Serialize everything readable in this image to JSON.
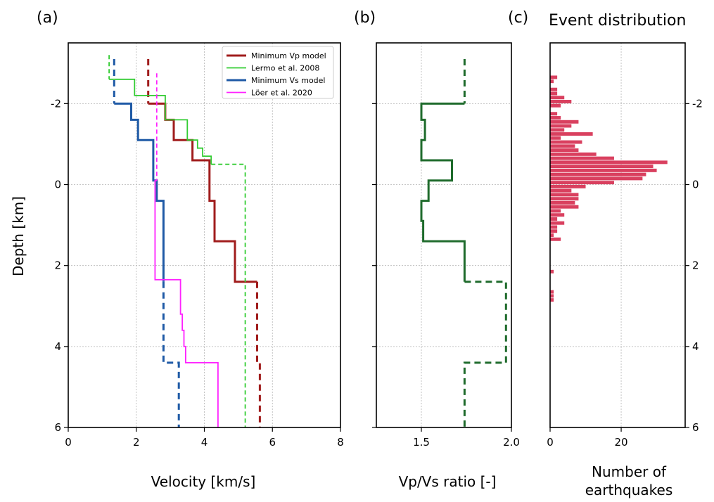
{
  "chart_data": [
    {
      "panel": "(a)",
      "type": "line",
      "xlabel": "Velocity [km/s]",
      "ylabel": "Depth [km]",
      "xlim": [
        0,
        8
      ],
      "ylim": [
        6,
        -3.5
      ],
      "xticks": [
        0,
        2,
        4,
        6,
        8
      ],
      "yticks": [
        -2,
        0,
        2,
        4,
        6
      ],
      "grid": true,
      "legend_placement": "top-right",
      "series": [
        {
          "name": "Minimum Vp model",
          "color": "#a01c1c",
          "segments": [
            {
              "style": "dashed",
              "points": [
                [
                  2.35,
                  -3.1
                ],
                [
                  2.35,
                  -2.0
                ]
              ]
            },
            {
              "style": "solid",
              "points": [
                [
                  2.35,
                  -2.0
                ],
                [
                  2.85,
                  -2.0
                ],
                [
                  2.85,
                  -1.6
                ],
                [
                  3.1,
                  -1.6
                ],
                [
                  3.1,
                  -1.1
                ],
                [
                  3.65,
                  -1.1
                ],
                [
                  3.65,
                  -0.6
                ],
                [
                  4.15,
                  -0.6
                ],
                [
                  4.15,
                  0.4
                ],
                [
                  4.3,
                  0.4
                ],
                [
                  4.3,
                  1.4
                ],
                [
                  4.9,
                  1.4
                ],
                [
                  4.9,
                  2.4
                ],
                [
                  5.55,
                  2.4
                ]
              ]
            },
            {
              "style": "dashed",
              "points": [
                [
                  5.55,
                  2.4
                ],
                [
                  5.55,
                  4.4
                ],
                [
                  5.63,
                  4.4
                ],
                [
                  5.63,
                  6.0
                ]
              ]
            }
          ]
        },
        {
          "name": "Lermo et al. 2008",
          "color": "#33cc33",
          "segments": [
            {
              "style": "dashed",
              "points": [
                [
                  1.2,
                  -3.2
                ],
                [
                  1.2,
                  -2.6
                ]
              ]
            },
            {
              "style": "solid",
              "points": [
                [
                  1.2,
                  -2.6
                ],
                [
                  1.95,
                  -2.6
                ],
                [
                  1.95,
                  -2.2
                ],
                [
                  2.85,
                  -2.2
                ],
                [
                  2.85,
                  -1.6
                ],
                [
                  3.5,
                  -1.6
                ],
                [
                  3.5,
                  -1.1
                ],
                [
                  3.8,
                  -1.1
                ],
                [
                  3.8,
                  -0.9
                ],
                [
                  3.95,
                  -0.9
                ],
                [
                  3.95,
                  -0.7
                ],
                [
                  4.2,
                  -0.7
                ],
                [
                  4.2,
                  -0.5
                ]
              ]
            },
            {
              "style": "dashed",
              "points": [
                [
                  4.2,
                  -0.5
                ],
                [
                  5.2,
                  -0.5
                ],
                [
                  5.2,
                  6.0
                ]
              ]
            }
          ]
        },
        {
          "name": "Minimum Vs model",
          "color": "#1f5aa6",
          "segments": [
            {
              "style": "dashed",
              "points": [
                [
                  1.35,
                  -3.1
                ],
                [
                  1.35,
                  -2.0
                ]
              ]
            },
            {
              "style": "solid",
              "points": [
                [
                  1.35,
                  -2.0
                ],
                [
                  1.85,
                  -2.0
                ],
                [
                  1.85,
                  -1.6
                ],
                [
                  2.05,
                  -1.6
                ],
                [
                  2.05,
                  -1.1
                ],
                [
                  2.5,
                  -1.1
                ],
                [
                  2.5,
                  -0.1
                ],
                [
                  2.6,
                  -0.1
                ],
                [
                  2.6,
                  0.4
                ],
                [
                  2.8,
                  0.4
                ],
                [
                  2.8,
                  2.4
                ]
              ]
            },
            {
              "style": "dashed",
              "points": [
                [
                  2.8,
                  2.4
                ],
                [
                  2.8,
                  4.4
                ],
                [
                  3.25,
                  4.4
                ],
                [
                  3.25,
                  6.0
                ]
              ]
            }
          ]
        },
        {
          "name": "Löer et al. 2020",
          "color": "#ff22ff",
          "segments": [
            {
              "style": "dashed",
              "points": [
                [
                  2.6,
                  -2.75
                ],
                [
                  2.6,
                  -0.1
                ]
              ]
            },
            {
              "style": "solid",
              "points": [
                [
                  2.6,
                  -0.1
                ],
                [
                  2.55,
                  -0.1
                ],
                [
                  2.55,
                  2.35
                ],
                [
                  3.3,
                  2.35
                ],
                [
                  3.3,
                  3.2
                ],
                [
                  3.35,
                  3.2
                ],
                [
                  3.35,
                  3.6
                ],
                [
                  3.4,
                  3.6
                ],
                [
                  3.4,
                  4.0
                ],
                [
                  3.45,
                  4.0
                ],
                [
                  3.45,
                  4.4
                ],
                [
                  4.4,
                  4.4
                ],
                [
                  4.4,
                  6.0
                ]
              ]
            }
          ]
        }
      ]
    },
    {
      "panel": "(b)",
      "type": "line",
      "xlabel": "Vp/Vs ratio [-]",
      "xlim": [
        1.25,
        2.0
      ],
      "ylim": [
        6,
        -3.5
      ],
      "xticks": [
        1.5,
        2.0
      ],
      "xtick_labels": [
        "1.5",
        "2.0"
      ],
      "grid": true,
      "series": [
        {
          "color": "#1f6b2c",
          "segments": [
            {
              "style": "dashed",
              "points": [
                [
                  1.74,
                  -3.1
                ],
                [
                  1.74,
                  -2.0
                ]
              ]
            },
            {
              "style": "solid",
              "points": [
                [
                  1.74,
                  -2.0
                ],
                [
                  1.5,
                  -2.0
                ],
                [
                  1.5,
                  -1.6
                ],
                [
                  1.52,
                  -1.6
                ],
                [
                  1.52,
                  -1.1
                ],
                [
                  1.5,
                  -1.1
                ],
                [
                  1.5,
                  -0.6
                ],
                [
                  1.67,
                  -0.6
                ],
                [
                  1.67,
                  -0.1
                ],
                [
                  1.54,
                  -0.1
                ],
                [
                  1.54,
                  0.4
                ],
                [
                  1.5,
                  0.4
                ],
                [
                  1.5,
                  0.9
                ],
                [
                  1.51,
                  0.9
                ],
                [
                  1.51,
                  1.4
                ],
                [
                  1.74,
                  1.4
                ],
                [
                  1.74,
                  2.4
                ]
              ]
            },
            {
              "style": "dashed",
              "points": [
                [
                  1.74,
                  2.4
                ],
                [
                  1.97,
                  2.4
                ],
                [
                  1.97,
                  4.4
                ],
                [
                  1.74,
                  4.4
                ],
                [
                  1.74,
                  6.0
                ]
              ]
            }
          ]
        }
      ]
    },
    {
      "panel": "(c)",
      "title": "Event distribution",
      "type": "bar",
      "orientation": "horizontal",
      "xlabel": "Number of earthquakes",
      "xlim": [
        0,
        38
      ],
      "xticks": [
        0,
        20
      ],
      "ylim": [
        6,
        -3.5
      ],
      "yticks": [
        -2,
        0,
        2,
        4,
        6
      ],
      "grid": true,
      "bin_height_km": 0.1,
      "color": "#d9405f",
      "bin_centers": [
        -2.65,
        -2.55,
        -2.45,
        -2.35,
        -2.25,
        -2.15,
        -2.05,
        -1.95,
        -1.85,
        -1.75,
        -1.65,
        -1.55,
        -1.45,
        -1.35,
        -1.25,
        -1.15,
        -1.05,
        -0.95,
        -0.85,
        -0.75,
        -0.65,
        -0.55,
        -0.45,
        -0.35,
        -0.25,
        -0.15,
        -0.05,
        0.05,
        0.15,
        0.25,
        0.35,
        0.45,
        0.55,
        0.65,
        0.75,
        0.85,
        0.95,
        1.05,
        1.15,
        1.25,
        1.35,
        1.45,
        1.55,
        1.65,
        2.15,
        2.65,
        2.75,
        2.85
      ],
      "counts": [
        2,
        1,
        0,
        2,
        2,
        4,
        6,
        3,
        0,
        2,
        3,
        8,
        6,
        4,
        12,
        3,
        9,
        7,
        8,
        13,
        18,
        33,
        29,
        30,
        27,
        26,
        18,
        10,
        6,
        8,
        8,
        7,
        8,
        3,
        4,
        2,
        4,
        2,
        2,
        1,
        3,
        0,
        0,
        0,
        1,
        1,
        1,
        1
      ]
    }
  ]
}
